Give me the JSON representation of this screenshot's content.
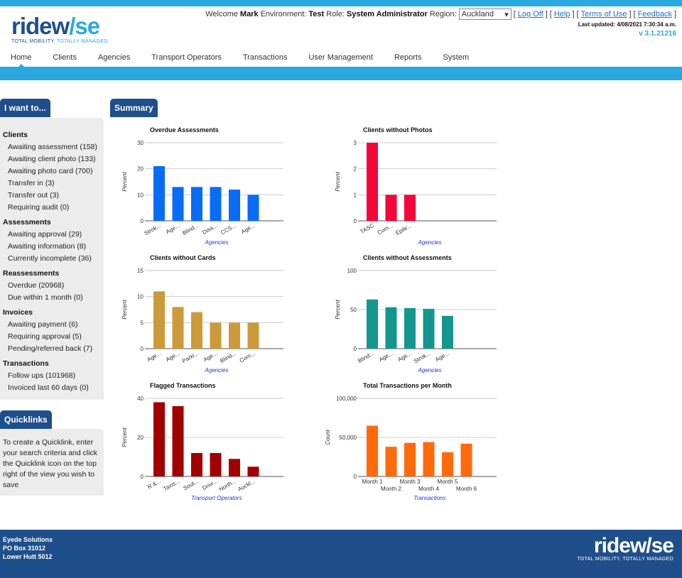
{
  "brand": {
    "logo_part1": "ridew",
    "logo_part2": "/se",
    "tagline_part1": "TOTAL MOBILITY.",
    "tagline_part2": " TOTALLY MANAGED"
  },
  "userbar": {
    "welcome": "Welcome",
    "user": "Mark",
    "env_label": "Environment:",
    "env": "Test",
    "role_label": "Role:",
    "role": "System Administrator",
    "region_label": "Region:",
    "region": "Auckland",
    "logoff": "Log Off",
    "help": "Help",
    "terms": "Terms of Use",
    "feedback": "Feedback",
    "last_updated": "Last updated: 4/08/2021 7:30:34 a.m.",
    "version": "v 3.1.21216"
  },
  "nav": [
    "Home",
    "Clients",
    "Agencies",
    "Transport Operators",
    "Transactions",
    "User Management",
    "Reports",
    "System"
  ],
  "sidebar": {
    "title": "I want to...",
    "sections": [
      {
        "heading": "Clients",
        "items": [
          "Awaiting assessment (158)",
          "Awaiting client photo (133)",
          "Awaiting photo card (700)",
          "Transfer in (3)",
          "Transfer out (3)",
          "Requiring audit (0)"
        ]
      },
      {
        "heading": "Assessments",
        "items": [
          "Awaiting approval (29)",
          "Awaiting information (8)",
          "Currently incomplete (36)"
        ]
      },
      {
        "heading": "Reassessments",
        "items": [
          "Overdue (20968)",
          "Due within 1 month (0)"
        ]
      },
      {
        "heading": "Invoices",
        "items": [
          "Awaiting payment (6)",
          "Requiring approval (5)",
          "Pending/referred back (7)"
        ]
      },
      {
        "heading": "Transactions",
        "items": [
          "Follow ups (101968)",
          "Invoiced last 60 days (0)"
        ]
      }
    ]
  },
  "quicklinks": {
    "title": "Quicklinks",
    "text": "To create a Quicklink, enter your search criteria and click the Quicklink icon on the top right of the view you wish to save"
  },
  "summary": {
    "title": "Summary"
  },
  "colors": {
    "brand_dark": "#1f4f8b",
    "brand_light": "#2aa9e0"
  },
  "chart_data": [
    {
      "type": "bar",
      "title": "Overdue Assessments",
      "ylabel": "Percent",
      "xlabel": "Agencies",
      "color": "#0a6cf5",
      "ylim": [
        0,
        30
      ],
      "yticks": [
        "0",
        "10",
        "20",
        "30"
      ],
      "categories": [
        "Strok...",
        "Age...",
        "Blind...",
        "Disa...",
        "CCS...",
        "Age..."
      ],
      "values": [
        21,
        13,
        13,
        13,
        12,
        10
      ]
    },
    {
      "type": "bar",
      "title": "Clients without Photos",
      "ylabel": "Percent",
      "xlabel": "Agencies",
      "color": "#f5063a",
      "ylim": [
        0,
        3
      ],
      "yticks": [
        "0",
        "1",
        "2",
        "3"
      ],
      "categories": [
        "TASC",
        "Com...",
        "Epile...",
        "",
        "",
        ""
      ],
      "values": [
        3,
        1,
        1,
        0,
        0,
        0
      ]
    },
    {
      "type": "bar",
      "title": "Clients without Cards",
      "ylabel": "Percent",
      "xlabel": "Agencies",
      "color": "#cc9a3a",
      "ylim": [
        0,
        15
      ],
      "yticks": [
        "0",
        "5",
        "10",
        "15"
      ],
      "categories": [
        "Age...",
        "Age...",
        "Parki...",
        "Age...",
        "Blind...",
        "Com..."
      ],
      "values": [
        11,
        8,
        7,
        5,
        5,
        5
      ]
    },
    {
      "type": "bar",
      "title": "Clients without Assessments",
      "ylabel": "Percent",
      "xlabel": "Agencies",
      "color": "#14968f",
      "ylim": [
        0,
        100
      ],
      "yticks": [
        "0",
        "50",
        "100"
      ],
      "categories": [
        "Blind...",
        "Age...",
        "Age...",
        "Strok...",
        "Age...",
        ""
      ],
      "values": [
        63,
        53,
        52,
        51,
        42,
        0
      ]
    },
    {
      "type": "bar",
      "title": "Flagged Transactions",
      "ylabel": "Percent",
      "xlabel": "Transport Operators",
      "color": "#a10000",
      "ylim": [
        0,
        40
      ],
      "yticks": [
        "0",
        "20",
        "40"
      ],
      "categories": [
        "R &...",
        "Taxis...",
        "Sout...",
        "Drivi...",
        "North...",
        "Auckl..."
      ],
      "values": [
        38,
        36,
        12,
        12,
        9,
        5
      ]
    },
    {
      "type": "bar",
      "title": "Total Transactions per Month",
      "ylabel": "Count",
      "xlabel": "Transactions",
      "color": "#ff6a0a",
      "ylim": [
        0,
        100000
      ],
      "yticks": [
        "0",
        "50,000",
        "100,000"
      ],
      "categories": [
        "Month 1",
        "Month 2",
        "Month 3",
        "Month 4",
        "Month 5",
        "Month 6"
      ],
      "values": [
        65000,
        38000,
        43000,
        44000,
        31000,
        42000
      ]
    }
  ],
  "footer": {
    "company": "Eyede Solutions",
    "address1": "PO Box 31012",
    "address2": "Lower Hutt 5012"
  }
}
